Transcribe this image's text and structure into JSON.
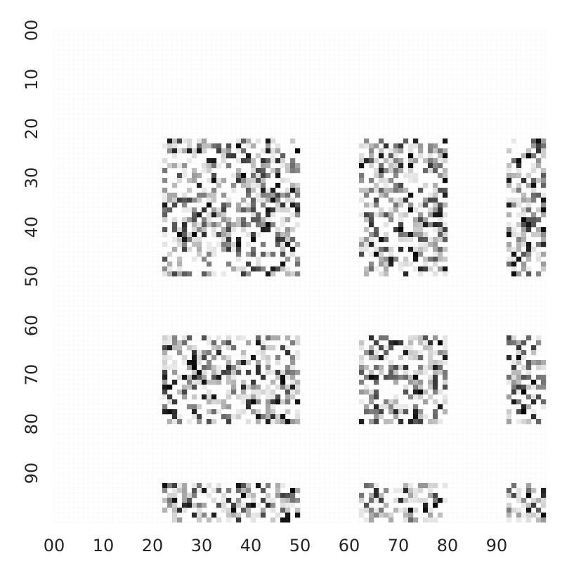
{
  "chart_data": {
    "type": "heatmap",
    "title": "",
    "xlabel": "",
    "ylabel": "",
    "grid_size": [
      100,
      100
    ],
    "x_ticks": [
      "00",
      "10",
      "20",
      "30",
      "40",
      "50",
      "60",
      "70",
      "80",
      "90"
    ],
    "y_ticks": [
      "00",
      "10",
      "20",
      "30",
      "40",
      "50",
      "60",
      "70",
      "80",
      "90"
    ],
    "tick_values": [
      0,
      10,
      20,
      30,
      40,
      50,
      60,
      70,
      80,
      90
    ],
    "value_range": [
      0,
      1
    ],
    "colormap": [
      "#ffffff",
      "#000000"
    ],
    "background_grid_color": "#f2f2f2",
    "active_column_ranges": [
      [
        22,
        49
      ],
      [
        62,
        79
      ],
      [
        92,
        99
      ]
    ],
    "active_row_ranges": [
      [
        22,
        49
      ],
      [
        62,
        79
      ],
      [
        92,
        99
      ]
    ],
    "pattern_note": "cells outside the active row/column ranges are 0; active cells hold sparse grey values between 0 and 1"
  }
}
